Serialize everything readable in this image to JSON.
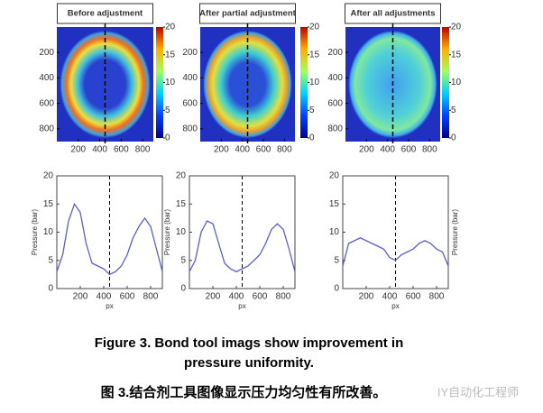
{
  "chart_data": [
    {
      "type": "heatmap",
      "title": "Before adjustment",
      "xlim": [
        0,
        900
      ],
      "ylim": [
        0,
        900
      ],
      "xticks": [
        200,
        400,
        600,
        800
      ],
      "yticks": [
        200,
        400,
        600,
        800
      ],
      "clim": [
        0,
        20
      ],
      "cticks": [
        0,
        5,
        10,
        15,
        20
      ]
    },
    {
      "type": "heatmap",
      "title": "After partial adjustment",
      "xlim": [
        0,
        900
      ],
      "ylim": [
        0,
        900
      ],
      "xticks": [
        200,
        400,
        600,
        800
      ],
      "yticks": [
        200,
        400,
        600,
        800
      ],
      "clim": [
        0,
        20
      ],
      "cticks": [
        0,
        5,
        10,
        15,
        20
      ]
    },
    {
      "type": "heatmap",
      "title": "After all adjustments",
      "xlim": [
        0,
        900
      ],
      "ylim": [
        0,
        900
      ],
      "xticks": [
        200,
        400,
        600,
        800
      ],
      "yticks": [
        200,
        400,
        600,
        800
      ],
      "clim": [
        0,
        20
      ],
      "cticks": [
        0,
        5,
        10,
        15,
        20
      ]
    },
    {
      "type": "line",
      "x_label": "px",
      "y_label": "Pressure (bar)",
      "xlim": [
        0,
        900
      ],
      "ylim": [
        0,
        20
      ],
      "xticks": [
        200,
        400,
        600,
        800
      ],
      "yticks": [
        0,
        5,
        10,
        15,
        20
      ],
      "x": [
        0,
        50,
        100,
        150,
        200,
        250,
        300,
        350,
        400,
        450,
        500,
        550,
        600,
        650,
        700,
        750,
        800,
        850,
        900
      ],
      "series": [
        {
          "color": "#5a5fc8",
          "values": [
            3,
            6,
            12,
            15,
            13.5,
            8,
            4.5,
            4,
            3.5,
            2.5,
            3,
            4,
            6,
            9,
            11,
            12.5,
            11,
            7,
            3
          ]
        }
      ]
    },
    {
      "type": "line",
      "x_label": "px",
      "y_label": "Pressure (bar)",
      "xlim": [
        0,
        900
      ],
      "ylim": [
        0,
        20
      ],
      "xticks": [
        200,
        400,
        600,
        800
      ],
      "yticks": [
        0,
        5,
        10,
        15,
        20
      ],
      "x": [
        0,
        50,
        100,
        150,
        200,
        250,
        300,
        350,
        400,
        450,
        500,
        550,
        600,
        650,
        700,
        750,
        800,
        850,
        900
      ],
      "series": [
        {
          "color": "#5a5fc8",
          "values": [
            3,
            5,
            10,
            12,
            11.5,
            8,
            4.5,
            3.5,
            3,
            3.5,
            4,
            5,
            6,
            8,
            10.5,
            11.5,
            10.5,
            7,
            3
          ]
        }
      ]
    },
    {
      "type": "line",
      "x_label": "px",
      "y_label": "Pressure (bar)",
      "xlim": [
        0,
        900
      ],
      "ylim": [
        0,
        20
      ],
      "xticks": [
        200,
        400,
        600,
        800
      ],
      "yticks": [
        0,
        5,
        10,
        15,
        20
      ],
      "x": [
        0,
        50,
        100,
        150,
        200,
        250,
        300,
        350,
        400,
        450,
        500,
        550,
        600,
        650,
        700,
        750,
        800,
        850,
        900
      ],
      "series": [
        {
          "color": "#5a5fc8",
          "values": [
            4,
            8,
            8.5,
            9,
            8.5,
            8,
            7.5,
            7,
            5.5,
            5,
            6,
            6.5,
            7,
            8,
            8.5,
            8,
            7,
            6.5,
            4
          ]
        }
      ]
    }
  ],
  "caption": {
    "en": [
      "Figure 3. Bond tool imags show improvement in",
      "pressure uniformity."
    ],
    "zh": "图 3.结合剂工具图像显示压力均匀性有所改善。",
    "watermark": "IY自动化工程师"
  }
}
